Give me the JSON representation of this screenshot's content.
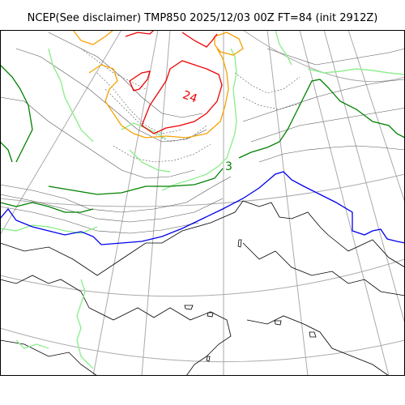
{
  "title": "NCEP(See disclaimer) TMP850 2025/12/03 00Z FT=84 (init 2912Z)",
  "contour_labels": {
    "warm_core": "24",
    "east_green": "3"
  },
  "colors": {
    "frame": "#000000",
    "graticule": "#aaaaaa",
    "coastline": "#000000",
    "isotherm_thin": "#555555",
    "isotherm_red": "#ee0000",
    "isotherm_orange": "#f5a300",
    "isotherm_lightgreen": "#90ee90",
    "isotherm_green": "#008000",
    "isotherm_blue": "#0000ee"
  }
}
